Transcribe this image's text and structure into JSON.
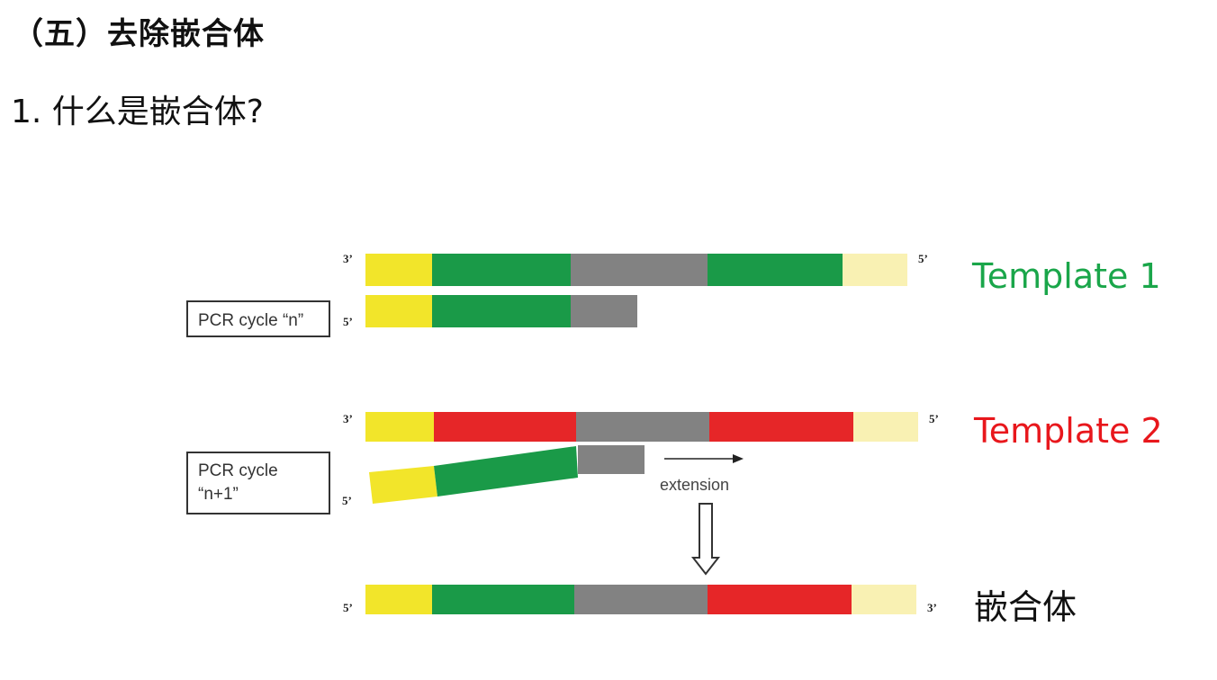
{
  "heading": "（五）去除嵌合体",
  "question": "1. 什么是嵌合体?",
  "diagram": {
    "template1_label": "Template 1",
    "template2_label": "Template 2",
    "chimera_label": "嵌合体",
    "cycle_n_label": "PCR cycle “n”",
    "cycle_n1_line1": "PCR cycle",
    "cycle_n1_line2": "“n+1”",
    "extension_label": "extension",
    "end_3prime": "3’",
    "end_5prime": "5’"
  },
  "colors": {
    "yellow": "#f2e52a",
    "green": "#1a9a48",
    "gray": "#828282",
    "red": "#e62628",
    "pale_yellow": "#f9f1b3",
    "template1_text": "#1aa64a",
    "template2_text": "#e8171c"
  }
}
